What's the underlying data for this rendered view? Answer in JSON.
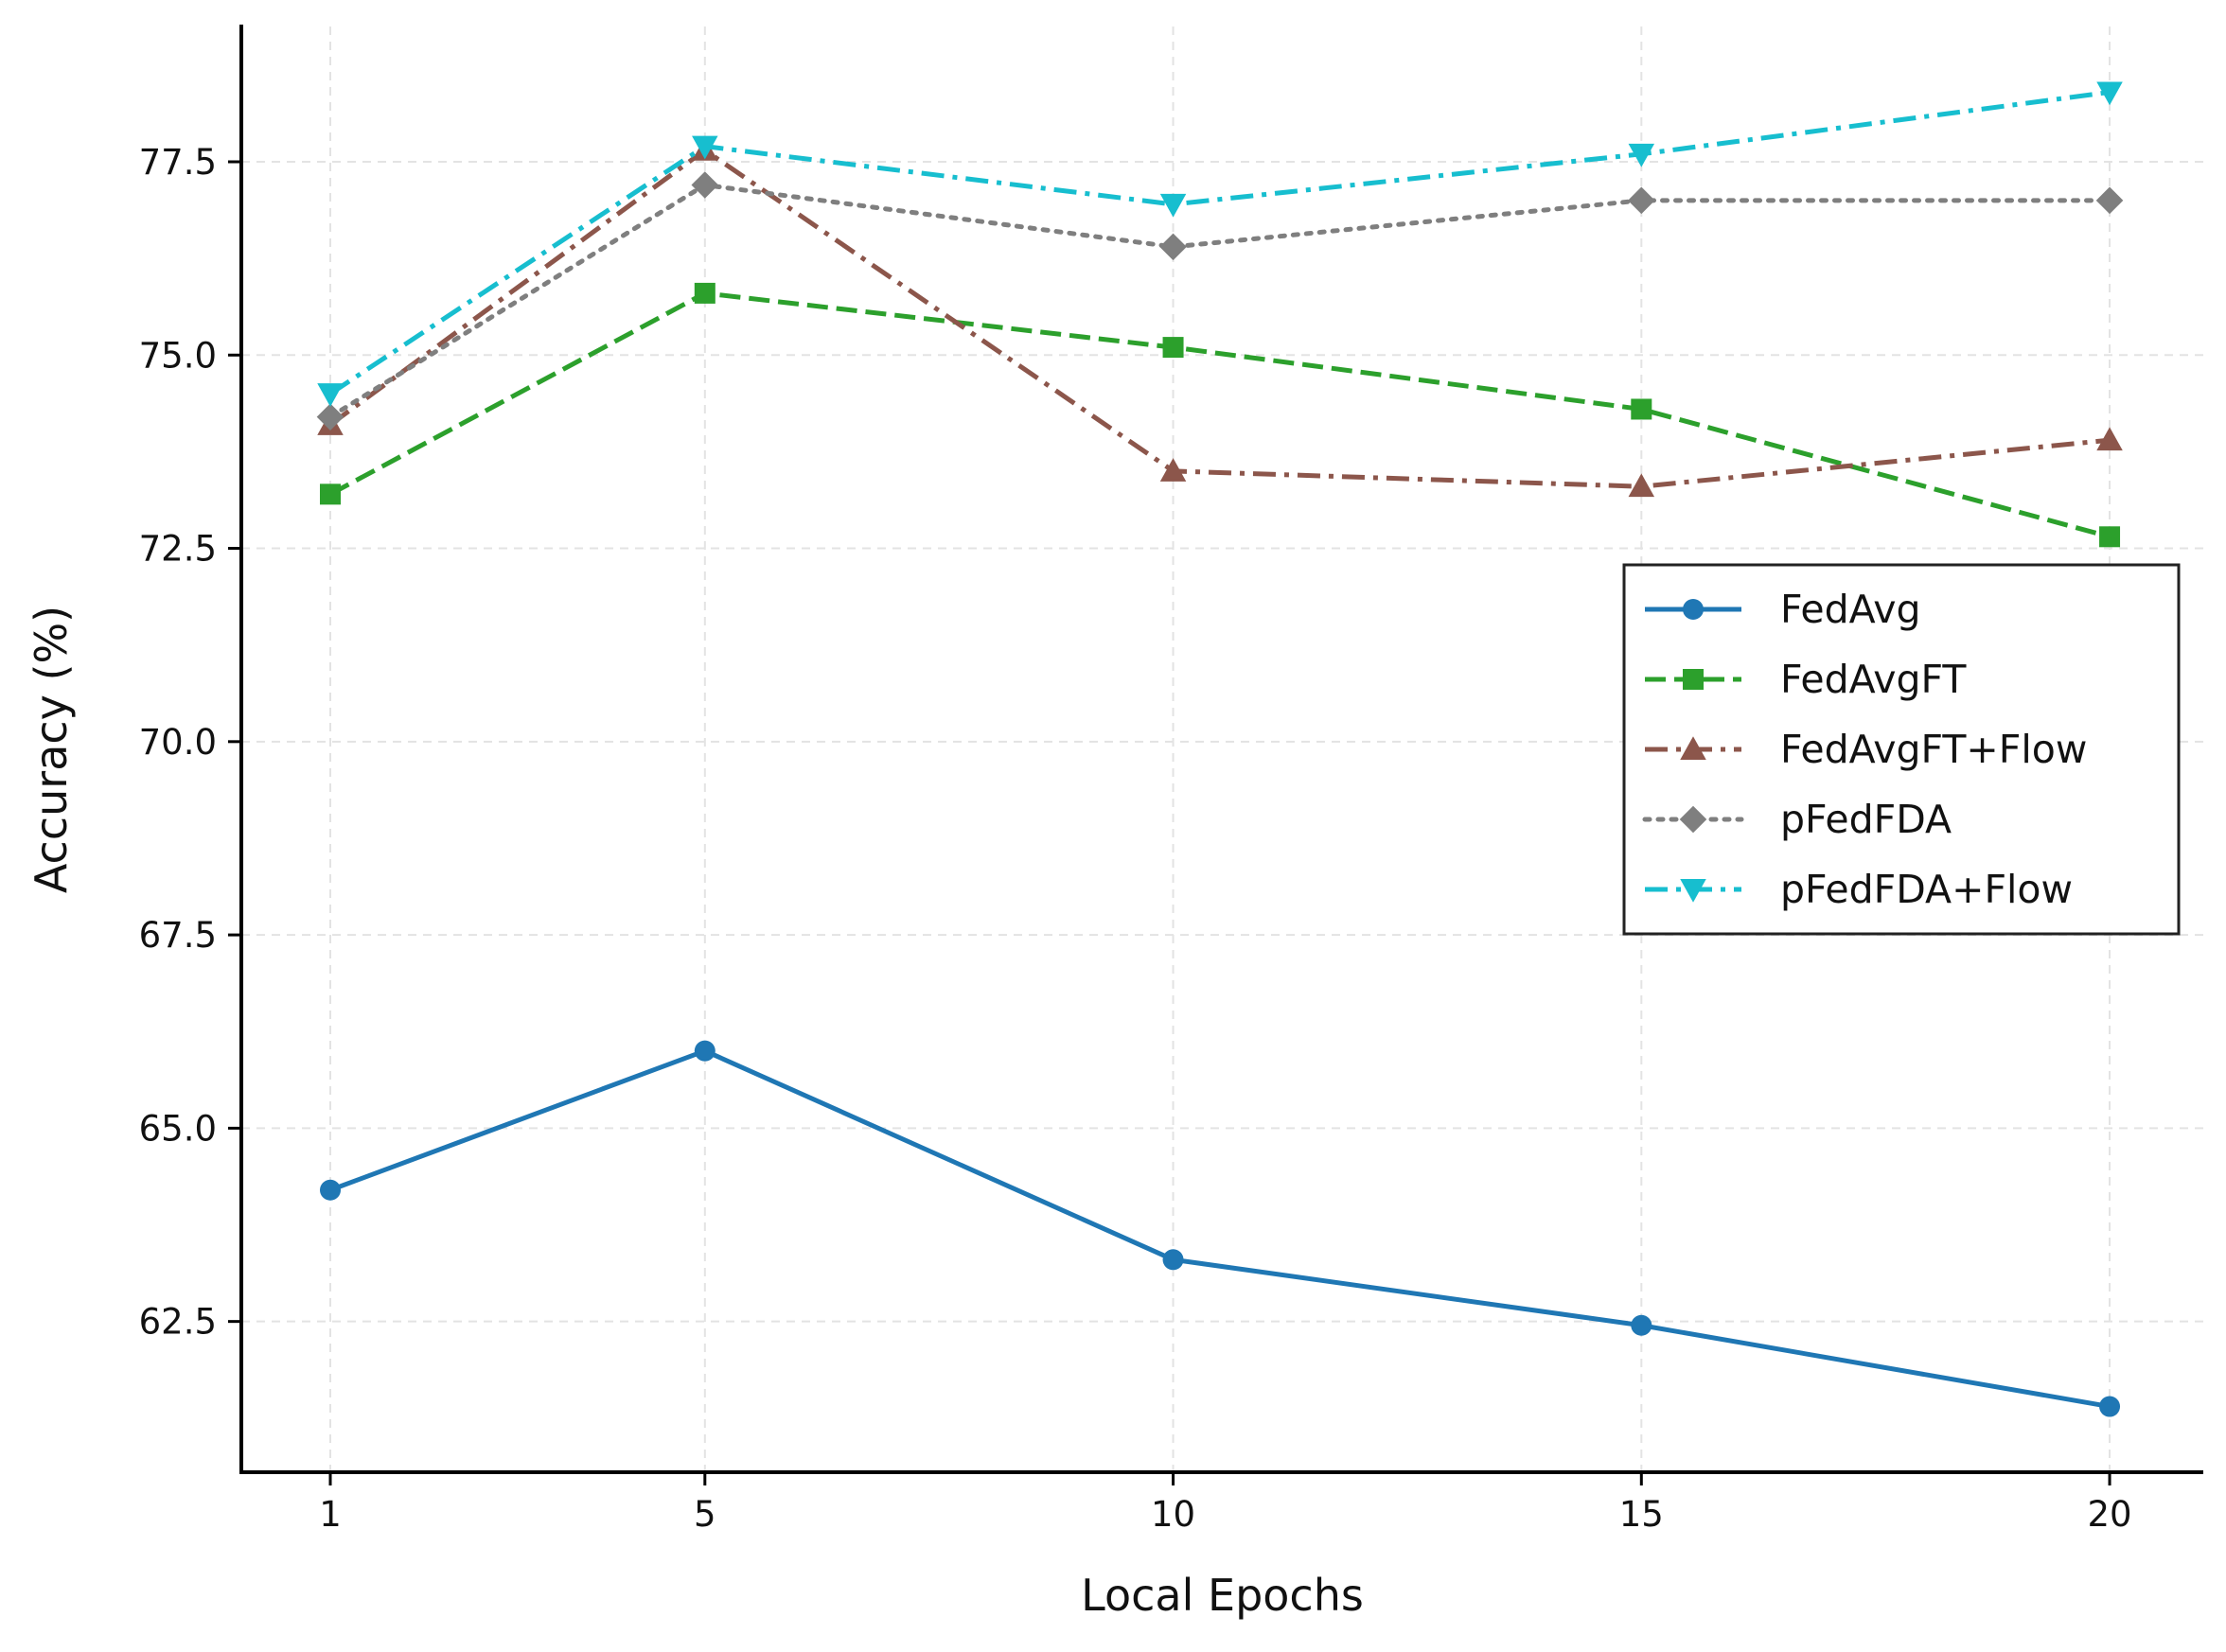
{
  "chart_data": {
    "type": "line",
    "title": "",
    "xlabel": "Local Epochs",
    "ylabel": "Accuracy (%)",
    "x": [
      1,
      5,
      10,
      15,
      20
    ],
    "x_ticks": [
      "1",
      "5",
      "10",
      "15",
      "20"
    ],
    "xlim": [
      0.05,
      21.0
    ],
    "y_ticks": [
      "62.5",
      "65.0",
      "67.5",
      "70.0",
      "72.5",
      "75.0",
      "77.5"
    ],
    "ylim": [
      60.55,
      79.25
    ],
    "grid": true,
    "legend_position": "center-right",
    "series": [
      {
        "name": "FedAvg",
        "values": [
          64.2,
          66.0,
          63.3,
          62.45,
          61.4
        ],
        "color": "#1f77b4",
        "marker": "circle",
        "linestyle": "solid"
      },
      {
        "name": "FedAvgFT",
        "values": [
          73.2,
          75.8,
          75.1,
          74.3,
          72.65
        ],
        "color": "#2ca02c",
        "marker": "square",
        "linestyle": "dashed"
      },
      {
        "name": "FedAvgFT+Flow",
        "values": [
          74.1,
          77.65,
          73.5,
          73.3,
          73.9
        ],
        "color": "#8c564b",
        "marker": "triangle-up",
        "linestyle": "dashdot"
      },
      {
        "name": "pFedFDA",
        "values": [
          74.2,
          77.2,
          76.4,
          77.0,
          77.0
        ],
        "color": "#7f7f7f",
        "marker": "diamond",
        "linestyle": "dotted"
      },
      {
        "name": "pFedFDA+Flow",
        "values": [
          74.5,
          77.7,
          76.95,
          77.6,
          78.4
        ],
        "color": "#17becf",
        "marker": "triangle-down",
        "linestyle": "dashdot"
      }
    ]
  }
}
